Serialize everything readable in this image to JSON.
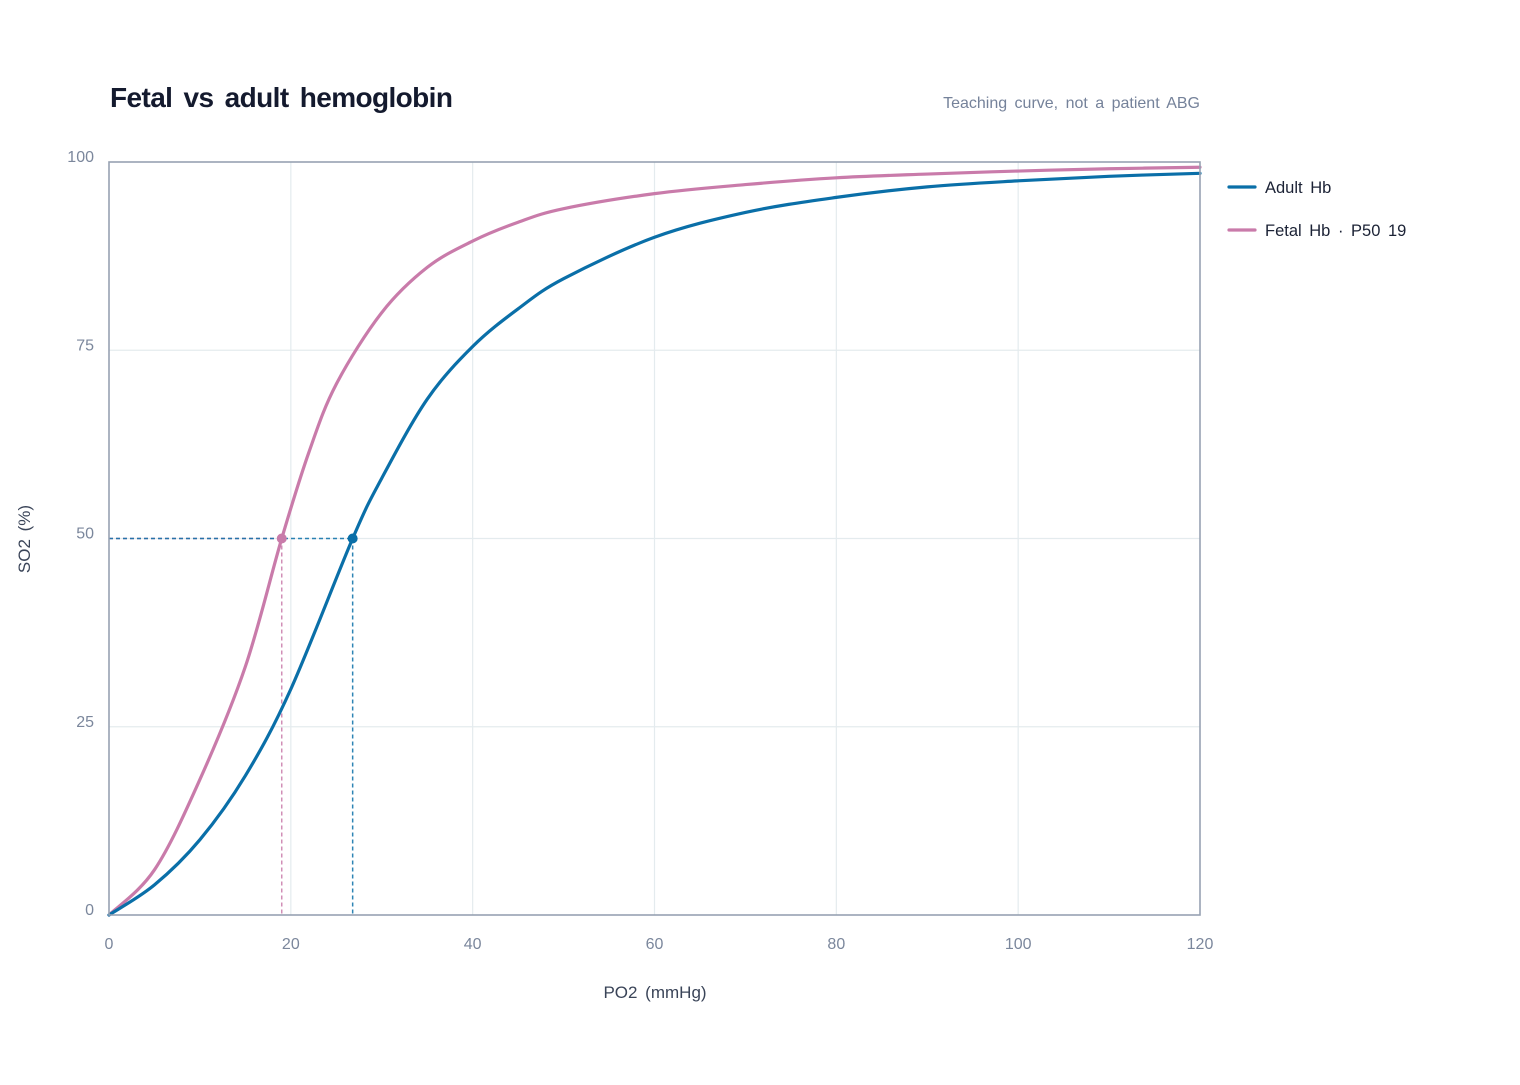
{
  "chart_data": {
    "type": "line",
    "title": "Fetal vs adult hemoglobin",
    "subtitle": "Teaching curve, not a patient ABG",
    "xlabel": "PO2 (mmHg)",
    "ylabel": "SO2 (%)",
    "xlim": [
      0,
      120
    ],
    "ylim": [
      0,
      100
    ],
    "x_ticks": [
      0,
      20,
      40,
      60,
      80,
      100,
      120
    ],
    "y_ticks": [
      0,
      25,
      50,
      75,
      100
    ],
    "grid": true,
    "legend_position": "right, outside plot, top",
    "series": [
      {
        "name": "Adult Hb",
        "color": "#0a6fa8",
        "p50": 26.8,
        "points": [
          [
            0,
            0
          ],
          [
            5,
            4
          ],
          [
            10,
            10
          ],
          [
            15,
            18.5
          ],
          [
            20,
            30
          ],
          [
            26.8,
            50
          ],
          [
            30,
            58
          ],
          [
            35,
            68.5
          ],
          [
            40,
            75.5
          ],
          [
            45,
            80.5
          ],
          [
            50,
            84.5
          ],
          [
            60,
            90
          ],
          [
            70,
            93.3
          ],
          [
            80,
            95.3
          ],
          [
            90,
            96.7
          ],
          [
            100,
            97.5
          ],
          [
            110,
            98.1
          ],
          [
            120,
            98.5
          ]
        ],
        "p50_marker": {
          "x": 26.8,
          "y": 50
        }
      },
      {
        "name": "Fetal Hb · P50 19",
        "color": "#c97baa",
        "p50": 19,
        "points": [
          [
            0,
            0
          ],
          [
            5,
            6
          ],
          [
            10,
            18
          ],
          [
            15,
            33
          ],
          [
            19,
            50
          ],
          [
            22,
            61.5
          ],
          [
            25,
            70.5
          ],
          [
            30,
            80
          ],
          [
            35,
            86
          ],
          [
            40,
            89.5
          ],
          [
            45,
            92
          ],
          [
            50,
            93.8
          ],
          [
            60,
            95.8
          ],
          [
            70,
            97
          ],
          [
            80,
            97.9
          ],
          [
            90,
            98.4
          ],
          [
            100,
            98.8
          ],
          [
            110,
            99.1
          ],
          [
            120,
            99.3
          ]
        ],
        "p50_marker": {
          "x": 19,
          "y": 50
        }
      }
    ]
  }
}
